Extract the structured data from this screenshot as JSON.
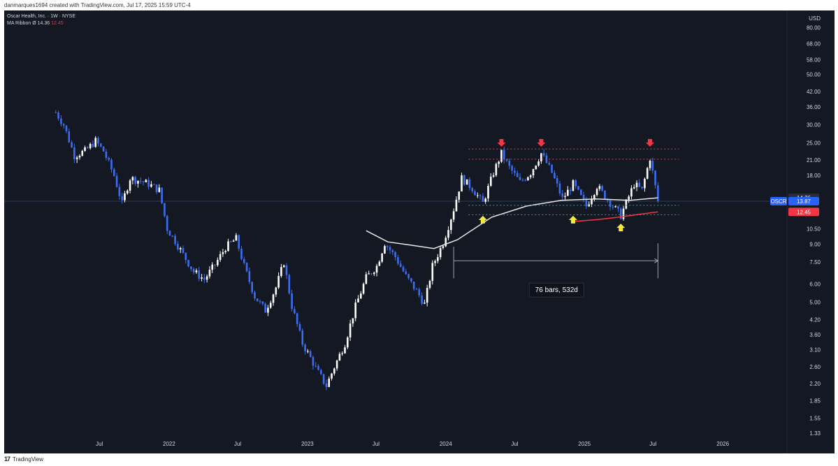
{
  "caption": "danmarques1694 created with TradingView.com, Jul 17, 2025 15:59 UTC-4",
  "legend": {
    "symbol_line": "Oscar Health, Inc. · 1W · NYSE",
    "ma_line": "MA Ribbon",
    "ma_symbol": "Ø",
    "ma_value_1": "14.36",
    "ma_value_2": "12.45"
  },
  "footer": {
    "logo": "17",
    "brand": "TradingView"
  },
  "colors": {
    "background": "#141823",
    "candle": "#3d6cf0",
    "wick": "#ffffff",
    "ma_short": "#e8e8e8",
    "ma_long": "#f23645",
    "resistance": "#f23645",
    "support": "#26a69a",
    "down_arrow": "#f23645",
    "up_arrow": "#f5e942",
    "price_line": "#2d3b55"
  },
  "chart_data": {
    "type": "candlestick",
    "symbol": "OSCR",
    "interval": "1W",
    "exchange": "NYSE",
    "y_scale": "log",
    "currency": "USD",
    "ylim": [
      1.25,
      90
    ],
    "xlim": [
      "2021-03-01",
      "2026-06-01"
    ],
    "x_tick_labels": [
      {
        "label": "Jul",
        "date": "2021-07-01"
      },
      {
        "label": "2022",
        "date": "2022-01-01"
      },
      {
        "label": "Jul",
        "date": "2022-07-01"
      },
      {
        "label": "2023",
        "date": "2023-01-01"
      },
      {
        "label": "Jul",
        "date": "2023-07-01"
      },
      {
        "label": "2024",
        "date": "2024-01-01"
      },
      {
        "label": "Jul",
        "date": "2024-07-01"
      },
      {
        "label": "2025",
        "date": "2025-01-01"
      },
      {
        "label": "Jul",
        "date": "2025-07-01"
      },
      {
        "label": "2026",
        "date": "2026-01-01"
      }
    ],
    "y_tick_labels": [
      "80.00",
      "68.00",
      "58.00",
      "50.00",
      "42.00",
      "36.00",
      "30.00",
      "25.00",
      "21.00",
      "18.00",
      "10.50",
      "9.00",
      "7.50",
      "6.00",
      "5.00",
      "4.20",
      "3.60",
      "3.10",
      "2.60",
      "2.20",
      "1.85",
      "1.55",
      "1.33"
    ],
    "y_tick_values": [
      80,
      68,
      58,
      50,
      42,
      36,
      30,
      25,
      21,
      18,
      10.5,
      9,
      7.5,
      6,
      5,
      4.2,
      3.6,
      3.1,
      2.6,
      2.2,
      1.85,
      1.55,
      1.33
    ],
    "close_path": [
      [
        "2021-03-08",
        34
      ],
      [
        "2021-03-29",
        30
      ],
      [
        "2021-04-26",
        22
      ],
      [
        "2021-05-24",
        23
      ],
      [
        "2021-06-21",
        25.5
      ],
      [
        "2021-07-12",
        23
      ],
      [
        "2021-08-09",
        18
      ],
      [
        "2021-08-30",
        13.5
      ],
      [
        "2021-09-20",
        17.5
      ],
      [
        "2021-10-18",
        17
      ],
      [
        "2021-11-08",
        16.5
      ],
      [
        "2021-12-06",
        15.5
      ],
      [
        "2021-12-27",
        10.5
      ],
      [
        "2022-01-17",
        9.3
      ],
      [
        "2022-02-07",
        8.1
      ],
      [
        "2022-03-07",
        6.8
      ],
      [
        "2022-04-04",
        6.3
      ],
      [
        "2022-05-02",
        7.3
      ],
      [
        "2022-05-30",
        8.7
      ],
      [
        "2022-06-27",
        9.5
      ],
      [
        "2022-07-18",
        7.2
      ],
      [
        "2022-08-15",
        5.3
      ],
      [
        "2022-09-12",
        4.6
      ],
      [
        "2022-10-10",
        5.8
      ],
      [
        "2022-10-31",
        7.5
      ],
      [
        "2022-11-21",
        4.8
      ],
      [
        "2022-12-19",
        3.3
      ],
      [
        "2023-01-09",
        2.85
      ],
      [
        "2023-01-30",
        2.45
      ],
      [
        "2023-02-20",
        2.15
      ],
      [
        "2023-03-13",
        2.6
      ],
      [
        "2023-04-10",
        3.3
      ],
      [
        "2023-05-08",
        4.8
      ],
      [
        "2023-06-05",
        6.4
      ],
      [
        "2023-07-03",
        7.2
      ],
      [
        "2023-07-24",
        9.1
      ],
      [
        "2023-08-21",
        7.9
      ],
      [
        "2023-09-18",
        6.5
      ],
      [
        "2023-10-16",
        5.6
      ],
      [
        "2023-11-06",
        4.9
      ],
      [
        "2023-11-27",
        7.2
      ],
      [
        "2023-12-25",
        9.1
      ],
      [
        "2024-01-22",
        12.8
      ],
      [
        "2024-02-12",
        17.5
      ],
      [
        "2024-03-11",
        15.8
      ],
      [
        "2024-04-08",
        13.6
      ],
      [
        "2024-05-06",
        18.5
      ],
      [
        "2024-05-27",
        22.5
      ],
      [
        "2024-06-17",
        19.5
      ],
      [
        "2024-07-15",
        16.8
      ],
      [
        "2024-08-12",
        18.5
      ],
      [
        "2024-09-09",
        22.5
      ],
      [
        "2024-10-07",
        18.5
      ],
      [
        "2024-11-04",
        14.2
      ],
      [
        "2024-12-02",
        16.5
      ],
      [
        "2025-01-06",
        13.2
      ],
      [
        "2025-02-03",
        16.2
      ],
      [
        "2025-03-03",
        14.1
      ],
      [
        "2025-04-07",
        12.0
      ],
      [
        "2025-05-12",
        16.5
      ],
      [
        "2025-06-02",
        15.5
      ],
      [
        "2025-06-23",
        21.5
      ],
      [
        "2025-07-14",
        13.87
      ]
    ],
    "series": [
      {
        "name": "MA Ribbon (short)",
        "values_x": [
          "2023-06-05",
          "2023-08-01",
          "2023-10-01",
          "2023-12-01",
          "2024-02-01",
          "2024-05-01",
          "2024-08-01",
          "2024-11-01",
          "2025-02-01",
          "2025-05-01",
          "2025-07-14"
        ],
        "values_y": [
          10.3,
          9.2,
          8.9,
          8.6,
          9.4,
          11.8,
          13.2,
          14.0,
          14.2,
          14.0,
          14.36
        ]
      },
      {
        "name": "MA Ribbon (long)",
        "values_x": [
          "2024-12-01",
          "2025-02-01",
          "2025-04-01",
          "2025-06-01",
          "2025-07-14"
        ],
        "values_y": [
          11.3,
          11.5,
          11.8,
          12.2,
          12.45
        ]
      }
    ],
    "horizontal_levels": [
      {
        "kind": "resistance",
        "value": 23.5,
        "from": "2024-03-01",
        "to": "2025-07-14"
      },
      {
        "kind": "resistance",
        "value": 21.2,
        "from": "2024-03-01",
        "to": "2025-07-14"
      },
      {
        "kind": "support",
        "value": 13.3,
        "from": "2024-03-01",
        "to": "2025-07-14"
      },
      {
        "kind": "support",
        "value": 12.1,
        "from": "2024-03-01",
        "to": "2025-07-14"
      }
    ],
    "markers": [
      {
        "kind": "down",
        "date": "2024-05-27",
        "value": 24.4
      },
      {
        "kind": "down",
        "date": "2024-09-09",
        "value": 24.4
      },
      {
        "kind": "down",
        "date": "2025-06-23",
        "value": 24.4
      },
      {
        "kind": "up",
        "date": "2024-04-08",
        "value": 11.8
      },
      {
        "kind": "up",
        "date": "2024-12-02",
        "value": 11.8
      },
      {
        "kind": "up",
        "date": "2025-04-07",
        "value": 10.9
      }
    ],
    "measurement": {
      "label": "76 bars, 532d",
      "from": "2024-01-22",
      "to": "2025-07-14",
      "value": 7.6
    },
    "last_price": {
      "symbol": "OSCR",
      "value": 13.87,
      "label": "13.87"
    },
    "ma_labels": [
      {
        "label": "14.36",
        "value": 14.36
      },
      {
        "label": "12.45",
        "value": 12.45
      }
    ],
    "currency_label": "USD"
  }
}
